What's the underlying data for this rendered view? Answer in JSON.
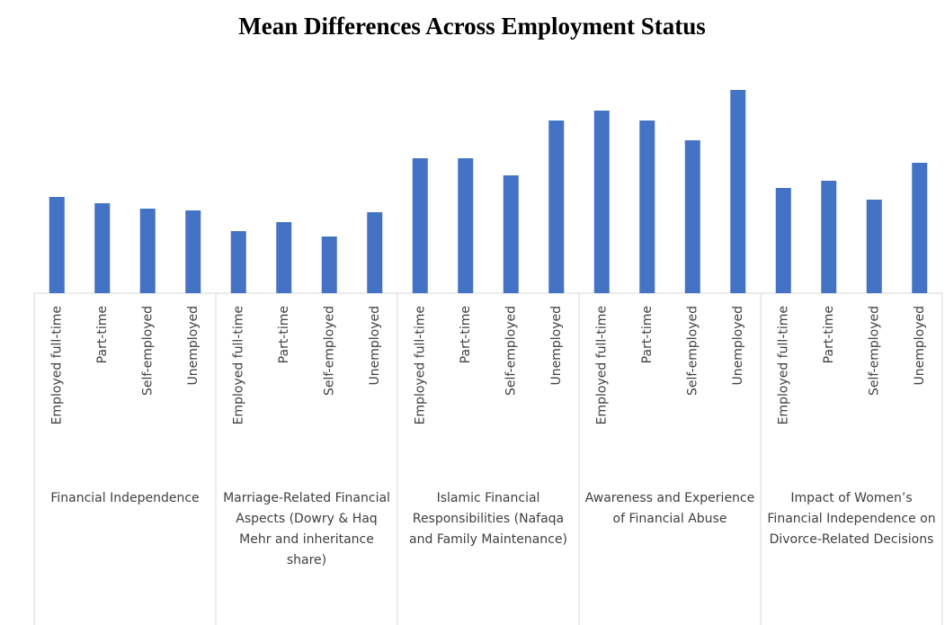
{
  "chart_data": {
    "type": "bar",
    "title": "Mean Differences Across Employment Status",
    "categories": [
      "Financial Independence",
      "Marriage-Related Financial Aspects (Dowry & Haq Mehr and inheritance share)",
      "Islamic Financial Responsibilities (Nafaqa and Family Maintenance)",
      "Awareness and Experience of Financial Abuse",
      "Impact of Women’s Financial Independence on Divorce-Related Decisions"
    ],
    "series": [
      {
        "name": "Employed full-time",
        "color": "#4472c4",
        "values": [
          10.7,
          6.9,
          15.0,
          20.3,
          11.7
        ]
      },
      {
        "name": "Part-time",
        "color": "#4472c4",
        "values": [
          10.0,
          7.9,
          15.0,
          19.2,
          12.5
        ]
      },
      {
        "name": "Self-employed",
        "color": "#4472c4",
        "values": [
          9.4,
          6.3,
          13.1,
          17.0,
          10.4
        ]
      },
      {
        "name": "Unemployed",
        "color": "#4472c4",
        "values": [
          9.2,
          9.0,
          19.2,
          22.6,
          14.5
        ]
      }
    ],
    "ylim": [
      0,
      25
    ]
  }
}
